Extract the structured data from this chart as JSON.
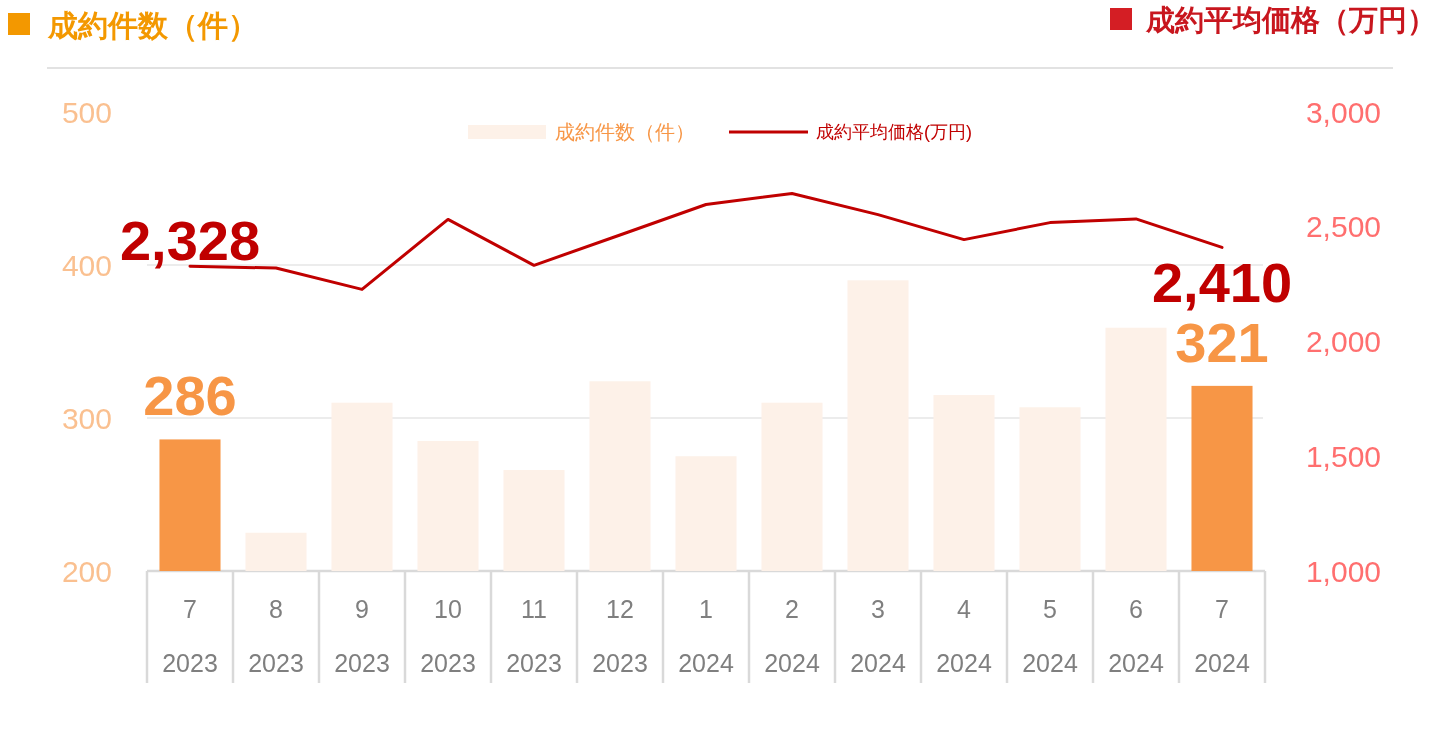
{
  "chart_data": {
    "type": "bar",
    "ylabel": "成約件数（件）",
    "y2label": "成約平均価格（万円）",
    "categories": [
      "7\n2023",
      "8\n2023",
      "9\n2023",
      "10\n2023",
      "11\n2023",
      "12\n2023",
      "1\n2024",
      "2\n2024",
      "3\n2024",
      "4\n2024",
      "5\n2024",
      "6\n2024",
      "7\n2024"
    ],
    "series": [
      {
        "name": "成約件数（件）",
        "color": "#fdf1e8",
        "colors": [
          "#f79646",
          "#fdf1e8",
          "#fdf1e8",
          "#fdf1e8",
          "#fdf1e8",
          "#fdf1e8",
          "#fdf1e8",
          "#fdf1e8",
          "#fdf1e8",
          "#fdf1e8",
          "#fdf1e8",
          "#fdf1e8",
          "#f79646"
        ],
        "values": [
          286,
          225,
          310,
          285,
          266,
          324,
          275,
          310,
          390,
          315,
          307,
          359,
          321
        ],
        "value_labels": [
          "286",
          null,
          null,
          null,
          null,
          null,
          null,
          null,
          null,
          null,
          null,
          null,
          "321"
        ]
      },
      {
        "name": "成約平均価格(万円)",
        "type": "line",
        "axis": "y2",
        "color": "#c00000",
        "values": [
          2328,
          2320,
          2227,
          2532,
          2332,
          2464,
          2597,
          2645,
          2553,
          2444,
          2518,
          2534,
          2410
        ],
        "value_labels": [
          "2,328",
          null,
          null,
          null,
          null,
          null,
          null,
          null,
          null,
          null,
          null,
          null,
          "2,410"
        ]
      }
    ],
    "ylim": [
      200,
      500
    ],
    "yticks": [
      200,
      300,
      400,
      500
    ],
    "y2lim": [
      1000,
      3000
    ],
    "y2ticks": [
      {
        "value": 1000,
        "label": "1,000"
      },
      {
        "value": 1500,
        "label": "1,500"
      },
      {
        "value": 2000,
        "label": "2,000"
      },
      {
        "value": 2500,
        "label": "2,500"
      },
      {
        "value": 3000,
        "label": "3,000"
      }
    ],
    "grid": "y",
    "legend": "top"
  }
}
